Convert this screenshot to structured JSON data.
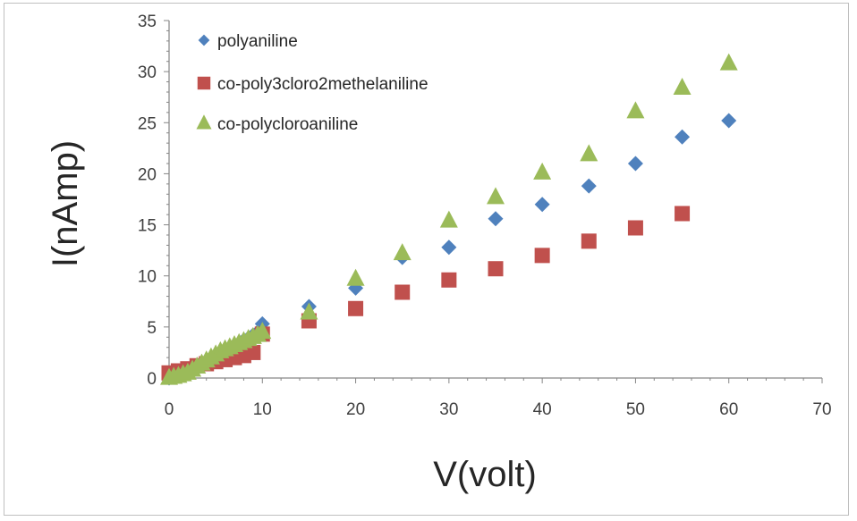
{
  "chart_data": {
    "type": "scatter",
    "xlabel": "V(volt)",
    "ylabel": "I(nAmp)",
    "xlim": [
      0,
      70
    ],
    "ylim": [
      0,
      35
    ],
    "xticks": [
      0,
      10,
      20,
      30,
      40,
      50,
      60,
      70
    ],
    "yticks": [
      0,
      5,
      10,
      15,
      20,
      25,
      30,
      35
    ],
    "grid": false,
    "legend_position": "top-left",
    "series": [
      {
        "name": "polyaniline",
        "marker": "diamond",
        "color": "#4f81bd",
        "points": [
          [
            0,
            0
          ],
          [
            0.5,
            0.15
          ],
          [
            1,
            0.3
          ],
          [
            1.5,
            0.5
          ],
          [
            2,
            0.7
          ],
          [
            2.5,
            0.9
          ],
          [
            3,
            1.2
          ],
          [
            3.5,
            1.4
          ],
          [
            4,
            1.7
          ],
          [
            4.5,
            1.9
          ],
          [
            5,
            2.2
          ],
          [
            5.5,
            2.4
          ],
          [
            6,
            2.7
          ],
          [
            6.5,
            2.9
          ],
          [
            7,
            3.2
          ],
          [
            7.5,
            3.4
          ],
          [
            8,
            3.7
          ],
          [
            8.5,
            3.9
          ],
          [
            9,
            4.2
          ],
          [
            9.5,
            4.5
          ],
          [
            10,
            5.3
          ],
          [
            15,
            7.0
          ],
          [
            20,
            8.8
          ],
          [
            25,
            11.8
          ],
          [
            30,
            12.8
          ],
          [
            35,
            15.6
          ],
          [
            40,
            17.0
          ],
          [
            45,
            18.8
          ],
          [
            50,
            21.0
          ],
          [
            55,
            23.6
          ],
          [
            60,
            25.2
          ]
        ]
      },
      {
        "name": "co-poly3cloro2methelaniline",
        "marker": "square",
        "color": "#c0504d",
        "points": [
          [
            0,
            0.5
          ],
          [
            1,
            0.7
          ],
          [
            2,
            0.9
          ],
          [
            3,
            1.2
          ],
          [
            4,
            1.4
          ],
          [
            5,
            1.6
          ],
          [
            6,
            1.8
          ],
          [
            7,
            2.0
          ],
          [
            8,
            2.2
          ],
          [
            9,
            2.5
          ],
          [
            10,
            4.3
          ],
          [
            15,
            5.6
          ],
          [
            20,
            6.8
          ],
          [
            25,
            8.4
          ],
          [
            30,
            9.6
          ],
          [
            35,
            10.7
          ],
          [
            40,
            12.0
          ],
          [
            45,
            13.4
          ],
          [
            50,
            14.7
          ],
          [
            55,
            16.1
          ]
        ]
      },
      {
        "name": "co-polycloroaniline",
        "marker": "triangle",
        "color": "#9bbb59",
        "points": [
          [
            0,
            0
          ],
          [
            0.5,
            0.1
          ],
          [
            1,
            0.2
          ],
          [
            1.5,
            0.35
          ],
          [
            2,
            0.5
          ],
          [
            2.5,
            0.8
          ],
          [
            3,
            1.1
          ],
          [
            3.5,
            1.4
          ],
          [
            4,
            1.7
          ],
          [
            4.5,
            2.0
          ],
          [
            5,
            2.3
          ],
          [
            5.5,
            2.6
          ],
          [
            6,
            2.8
          ],
          [
            6.5,
            3.0
          ],
          [
            7,
            3.2
          ],
          [
            7.5,
            3.4
          ],
          [
            8,
            3.6
          ],
          [
            8.5,
            3.8
          ],
          [
            9,
            4.0
          ],
          [
            9.5,
            4.2
          ],
          [
            10,
            4.5
          ],
          [
            15,
            6.4
          ],
          [
            20,
            9.7
          ],
          [
            25,
            12.2
          ],
          [
            30,
            15.4
          ],
          [
            35,
            17.7
          ],
          [
            40,
            20.1
          ],
          [
            45,
            21.9
          ],
          [
            50,
            26.1
          ],
          [
            55,
            28.4
          ],
          [
            60,
            30.8
          ]
        ]
      }
    ]
  }
}
